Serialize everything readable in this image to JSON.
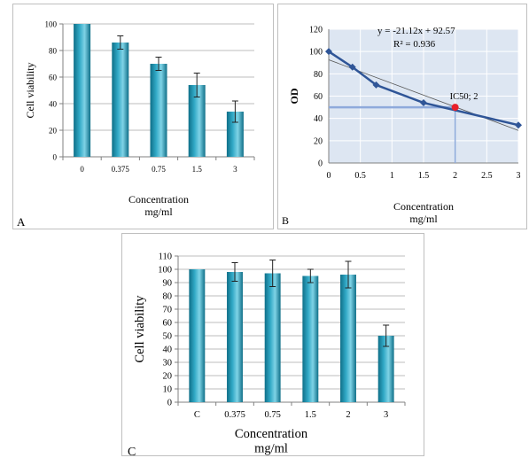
{
  "chart_data": [
    {
      "id": "A",
      "type": "bar",
      "panel_label": "A",
      "categories": [
        "0",
        "0.375",
        "0.75",
        "1.5",
        "3"
      ],
      "values": [
        100,
        86,
        70,
        54,
        34
      ],
      "errors": [
        0,
        5,
        5,
        9,
        8
      ],
      "ylabel": "Cell viability",
      "xlabel": "Concentration",
      "xunit": "mg/ml",
      "ylim": [
        0,
        100
      ],
      "yticks": [
        0,
        20,
        40,
        60,
        80,
        100
      ],
      "grid": true,
      "bar_color": "#31a9c6"
    },
    {
      "id": "B",
      "type": "line",
      "panel_label": "B",
      "x": [
        0,
        0.375,
        0.75,
        1.5,
        3
      ],
      "y": [
        100,
        86,
        70,
        54,
        34
      ],
      "trendline": {
        "slope": -21.12,
        "intercept": 92.57
      },
      "equation": "y = -21.12x + 92.57",
      "r2": "R² = 0.936",
      "ic50": {
        "x": 2,
        "y": 50,
        "label": "IC50; 2"
      },
      "ylabel": "OD",
      "xlabel": "Concentration",
      "xunit": "mg/ml",
      "xlim": [
        0,
        3
      ],
      "ylim": [
        0,
        120
      ],
      "xticks": [
        "0",
        "0.5",
        "1",
        "1.5",
        "2",
        "2.5",
        "3"
      ],
      "yticks": [
        0,
        20,
        40,
        60,
        80,
        100,
        120
      ],
      "grid": true,
      "line_color": "#2f5597",
      "ic50_color": "#e8202a",
      "guide_color": "#8eaadb"
    },
    {
      "id": "C",
      "type": "bar",
      "panel_label": "C",
      "categories": [
        "C",
        "0.375",
        "0.75",
        "1.5",
        "2",
        "3"
      ],
      "values": [
        100,
        98,
        97,
        95,
        96,
        50
      ],
      "errors": [
        0,
        7,
        10,
        5,
        10,
        8
      ],
      "ylabel": "Cell viability",
      "xlabel": "Concentration",
      "xunit": "mg/ml",
      "ylim": [
        0,
        110
      ],
      "yticks": [
        0,
        10,
        20,
        30,
        40,
        50,
        60,
        70,
        80,
        90,
        100,
        110
      ],
      "grid": true,
      "bar_color": "#31a9c6"
    }
  ]
}
